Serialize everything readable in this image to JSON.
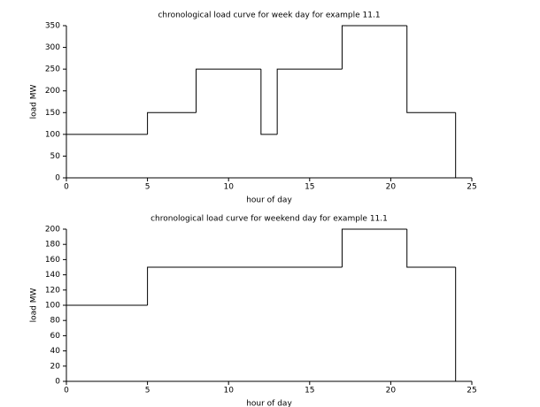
{
  "chart_data": [
    {
      "type": "line",
      "drawstyle": "steps-post",
      "title": "chronological load curve for week day for example 11.1",
      "xlabel": "hour of day",
      "ylabel": "load MW",
      "x": [
        0,
        5,
        8,
        12,
        13,
        17,
        21,
        24
      ],
      "values": [
        100,
        150,
        250,
        100,
        250,
        350,
        150,
        0
      ],
      "color": "#000000",
      "xlim": [
        0,
        25
      ],
      "xticks": [
        0,
        5,
        10,
        15,
        20,
        25
      ],
      "ylim": [
        0,
        350
      ],
      "yticks": [
        0,
        50,
        100,
        150,
        200,
        250,
        300,
        350
      ]
    },
    {
      "type": "line",
      "drawstyle": "steps-post",
      "title": "chronological load curve for weekend day for example 11.1",
      "xlabel": "hour of day",
      "ylabel": "load MW",
      "x": [
        0,
        5,
        17,
        21,
        24
      ],
      "values": [
        100,
        150,
        200,
        150,
        0
      ],
      "color": "#000000",
      "xlim": [
        0,
        25
      ],
      "xticks": [
        0,
        5,
        10,
        15,
        20,
        25
      ],
      "ylim": [
        0,
        200
      ],
      "yticks": [
        0,
        20,
        40,
        60,
        80,
        100,
        120,
        140,
        160,
        180,
        200
      ]
    }
  ]
}
